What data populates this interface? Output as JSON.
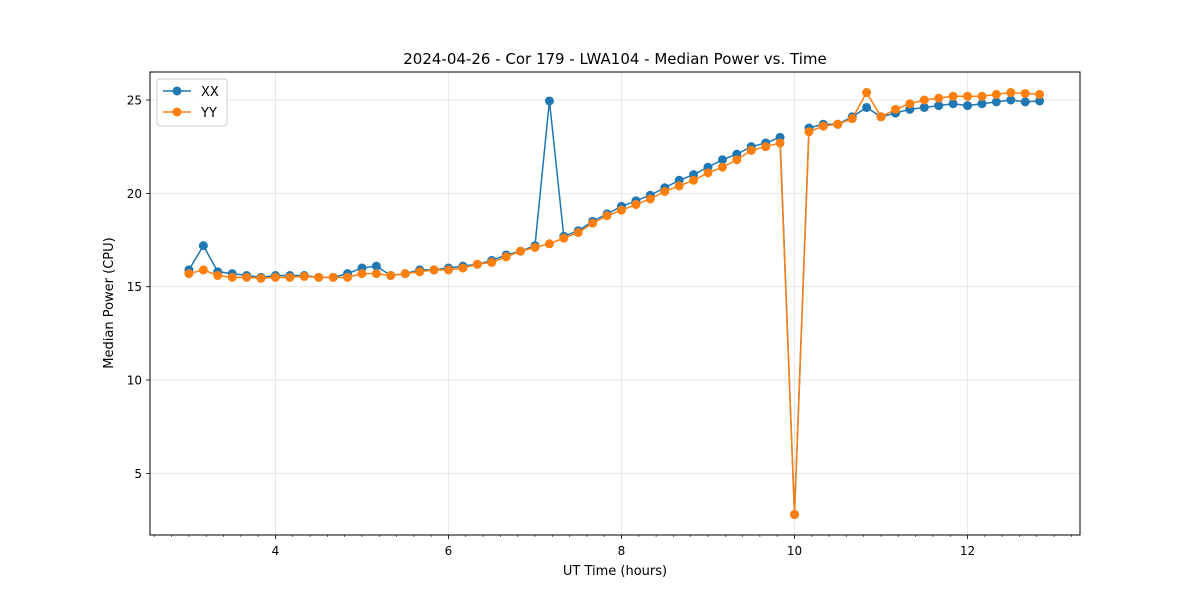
{
  "chart_data": {
    "type": "line",
    "title": "2024-04-26 - Cor 179 - LWA104 - Median Power vs. Time",
    "xlabel": "UT Time (hours)",
    "ylabel": "Median Power (CPU)",
    "xlim": [
      2.55,
      13.3
    ],
    "ylim": [
      1.7,
      26.5
    ],
    "xticks": [
      4,
      6,
      8,
      10,
      12
    ],
    "xtick_labels": [
      "4",
      "6",
      "8",
      "10",
      "12"
    ],
    "xminor_step": 0.2,
    "yticks": [
      5,
      10,
      15,
      20,
      25
    ],
    "ytick_labels": [
      "5",
      "10",
      "15",
      "20",
      "25"
    ],
    "grid": true,
    "legend_position": "upper-left",
    "x": [
      3.0,
      3.167,
      3.333,
      3.5,
      3.667,
      3.833,
      4.0,
      4.167,
      4.333,
      4.5,
      4.667,
      4.833,
      5.0,
      5.167,
      5.333,
      5.5,
      5.667,
      5.833,
      6.0,
      6.167,
      6.333,
      6.5,
      6.667,
      6.833,
      7.0,
      7.167,
      7.333,
      7.5,
      7.667,
      7.833,
      8.0,
      8.167,
      8.333,
      8.5,
      8.667,
      8.833,
      9.0,
      9.167,
      9.333,
      9.5,
      9.667,
      9.833,
      10.0,
      10.167,
      10.333,
      10.5,
      10.667,
      10.833,
      11.0,
      11.167,
      11.333,
      11.5,
      11.667,
      11.833,
      12.0,
      12.167,
      12.333,
      12.5,
      12.667,
      12.833
    ],
    "series": [
      {
        "name": "XX",
        "color": "#1f77b4",
        "values": [
          15.9,
          17.2,
          15.8,
          15.7,
          15.6,
          15.5,
          15.6,
          15.6,
          15.6,
          15.5,
          15.5,
          15.7,
          16.0,
          16.1,
          15.6,
          15.7,
          15.9,
          15.9,
          16.0,
          16.1,
          16.2,
          16.4,
          16.7,
          16.9,
          17.2,
          24.95,
          17.7,
          18.0,
          18.5,
          18.9,
          19.3,
          19.6,
          19.9,
          20.3,
          20.7,
          21.0,
          21.4,
          21.8,
          22.1,
          22.5,
          22.7,
          23.0,
          2.8,
          23.5,
          23.7,
          23.7,
          24.1,
          24.6,
          24.1,
          24.3,
          24.5,
          24.6,
          24.7,
          24.8,
          24.7,
          24.8,
          24.9,
          25.0,
          24.9,
          24.95
        ]
      },
      {
        "name": "YY",
        "color": "#ff7f0e",
        "values": [
          15.7,
          15.9,
          15.6,
          15.5,
          15.5,
          15.45,
          15.5,
          15.5,
          15.55,
          15.5,
          15.5,
          15.5,
          15.7,
          15.7,
          15.6,
          15.7,
          15.8,
          15.9,
          15.9,
          16.0,
          16.2,
          16.3,
          16.6,
          16.9,
          17.1,
          17.3,
          17.6,
          17.9,
          18.4,
          18.8,
          19.1,
          19.4,
          19.7,
          20.1,
          20.4,
          20.7,
          21.1,
          21.4,
          21.8,
          22.3,
          22.5,
          22.7,
          2.8,
          23.3,
          23.6,
          23.7,
          24.0,
          25.4,
          24.1,
          24.5,
          24.8,
          25.0,
          25.1,
          25.2,
          25.2,
          25.2,
          25.3,
          25.4,
          25.35,
          25.3
        ]
      }
    ]
  }
}
